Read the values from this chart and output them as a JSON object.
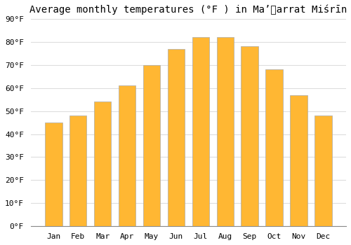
{
  "title": "Average monthly temperatures (°F ) in Ma’​arrat Miśrīn",
  "months": [
    "Jan",
    "Feb",
    "Mar",
    "Apr",
    "May",
    "Jun",
    "Jul",
    "Aug",
    "Sep",
    "Oct",
    "Nov",
    "Dec"
  ],
  "values": [
    45,
    48,
    54,
    61,
    70,
    77,
    82,
    82,
    78,
    68,
    57,
    48
  ],
  "bar_color_center": "#FFB733",
  "bar_color_edge": "#F5A000",
  "bar_border_color": "#AAAAAA",
  "ylim": [
    0,
    90
  ],
  "yticks": [
    0,
    10,
    20,
    30,
    40,
    50,
    60,
    70,
    80,
    90
  ],
  "ytick_labels": [
    "0°F",
    "10°F",
    "20°F",
    "30°F",
    "40°F",
    "50°F",
    "60°F",
    "70°F",
    "80°F",
    "90°F"
  ],
  "background_color": "#FFFFFF",
  "grid_color": "#DDDDDD",
  "title_fontsize": 10,
  "tick_fontsize": 8,
  "bar_width": 0.7
}
